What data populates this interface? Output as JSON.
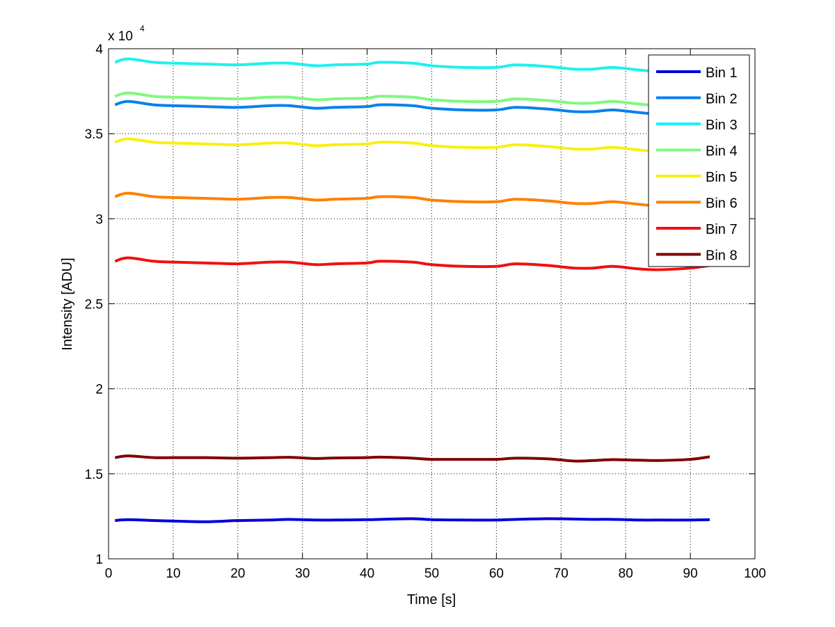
{
  "chart_data": {
    "type": "line",
    "title": "",
    "xlabel": "Time [s]",
    "ylabel": "Intensity [ADU]",
    "y_exponent_label": "x 10",
    "y_exponent_power": "4",
    "xlim": [
      0,
      100
    ],
    "ylim": [
      1,
      4
    ],
    "x_ticks": [
      "0",
      "10",
      "20",
      "30",
      "40",
      "50",
      "60",
      "70",
      "80",
      "90",
      "100"
    ],
    "y_ticks": [
      "1",
      "1.5",
      "2",
      "2.5",
      "3",
      "3.5",
      "4"
    ],
    "grid": true,
    "legend_position": "top-right",
    "x": [
      1,
      3,
      7,
      10,
      15,
      20,
      25,
      28,
      32,
      35,
      40,
      42,
      47,
      50,
      55,
      60,
      63,
      68,
      72,
      75,
      78,
      82,
      85,
      90,
      93
    ],
    "series": [
      {
        "name": "Bin 1",
        "color": "#0000d8",
        "values": [
          1.225,
          1.23,
          1.225,
          1.222,
          1.218,
          1.225,
          1.228,
          1.232,
          1.228,
          1.228,
          1.23,
          1.232,
          1.236,
          1.23,
          1.228,
          1.228,
          1.232,
          1.236,
          1.234,
          1.232,
          1.232,
          1.228,
          1.228,
          1.228,
          1.23
        ]
      },
      {
        "name": "Bin 2",
        "color": "#0a80ee",
        "values": [
          3.67,
          3.69,
          3.67,
          3.665,
          3.66,
          3.655,
          3.665,
          3.665,
          3.65,
          3.655,
          3.66,
          3.67,
          3.665,
          3.65,
          3.64,
          3.64,
          3.655,
          3.645,
          3.63,
          3.63,
          3.64,
          3.625,
          3.615,
          3.61,
          3.615
        ]
      },
      {
        "name": "Bin 3",
        "color": "#1ff0f0",
        "values": [
          3.92,
          3.94,
          3.92,
          3.915,
          3.91,
          3.905,
          3.915,
          3.915,
          3.9,
          3.905,
          3.91,
          3.92,
          3.915,
          3.9,
          3.89,
          3.89,
          3.905,
          3.895,
          3.88,
          3.88,
          3.89,
          3.875,
          3.865,
          3.86,
          3.865
        ]
      },
      {
        "name": "Bin 4",
        "color": "#80f880",
        "values": [
          3.72,
          3.74,
          3.72,
          3.715,
          3.71,
          3.705,
          3.715,
          3.715,
          3.7,
          3.705,
          3.71,
          3.72,
          3.715,
          3.7,
          3.69,
          3.69,
          3.705,
          3.695,
          3.68,
          3.68,
          3.69,
          3.675,
          3.665,
          3.66,
          3.665
        ]
      },
      {
        "name": "Bin 5",
        "color": "#f8f010",
        "values": [
          3.45,
          3.47,
          3.45,
          3.445,
          3.44,
          3.435,
          3.445,
          3.445,
          3.43,
          3.435,
          3.44,
          3.45,
          3.445,
          3.43,
          3.42,
          3.42,
          3.435,
          3.425,
          3.41,
          3.41,
          3.42,
          3.405,
          3.395,
          3.39,
          3.395
        ]
      },
      {
        "name": "Bin 6",
        "color": "#ff8000",
        "values": [
          3.13,
          3.15,
          3.13,
          3.125,
          3.12,
          3.115,
          3.125,
          3.125,
          3.11,
          3.115,
          3.12,
          3.13,
          3.125,
          3.11,
          3.1,
          3.1,
          3.115,
          3.105,
          3.09,
          3.09,
          3.1,
          3.085,
          3.075,
          3.07,
          3.075
        ]
      },
      {
        "name": "Bin 7",
        "color": "#f01010",
        "values": [
          2.75,
          2.77,
          2.75,
          2.745,
          2.74,
          2.735,
          2.745,
          2.745,
          2.73,
          2.735,
          2.74,
          2.75,
          2.745,
          2.73,
          2.72,
          2.72,
          2.735,
          2.725,
          2.71,
          2.71,
          2.72,
          2.705,
          2.7,
          2.71,
          2.725
        ]
      },
      {
        "name": "Bin 8",
        "color": "#800000",
        "values": [
          1.595,
          1.605,
          1.595,
          1.595,
          1.595,
          1.592,
          1.595,
          1.597,
          1.59,
          1.593,
          1.595,
          1.598,
          1.592,
          1.585,
          1.585,
          1.585,
          1.592,
          1.588,
          1.575,
          1.578,
          1.583,
          1.58,
          1.578,
          1.585,
          1.6
        ]
      }
    ]
  }
}
